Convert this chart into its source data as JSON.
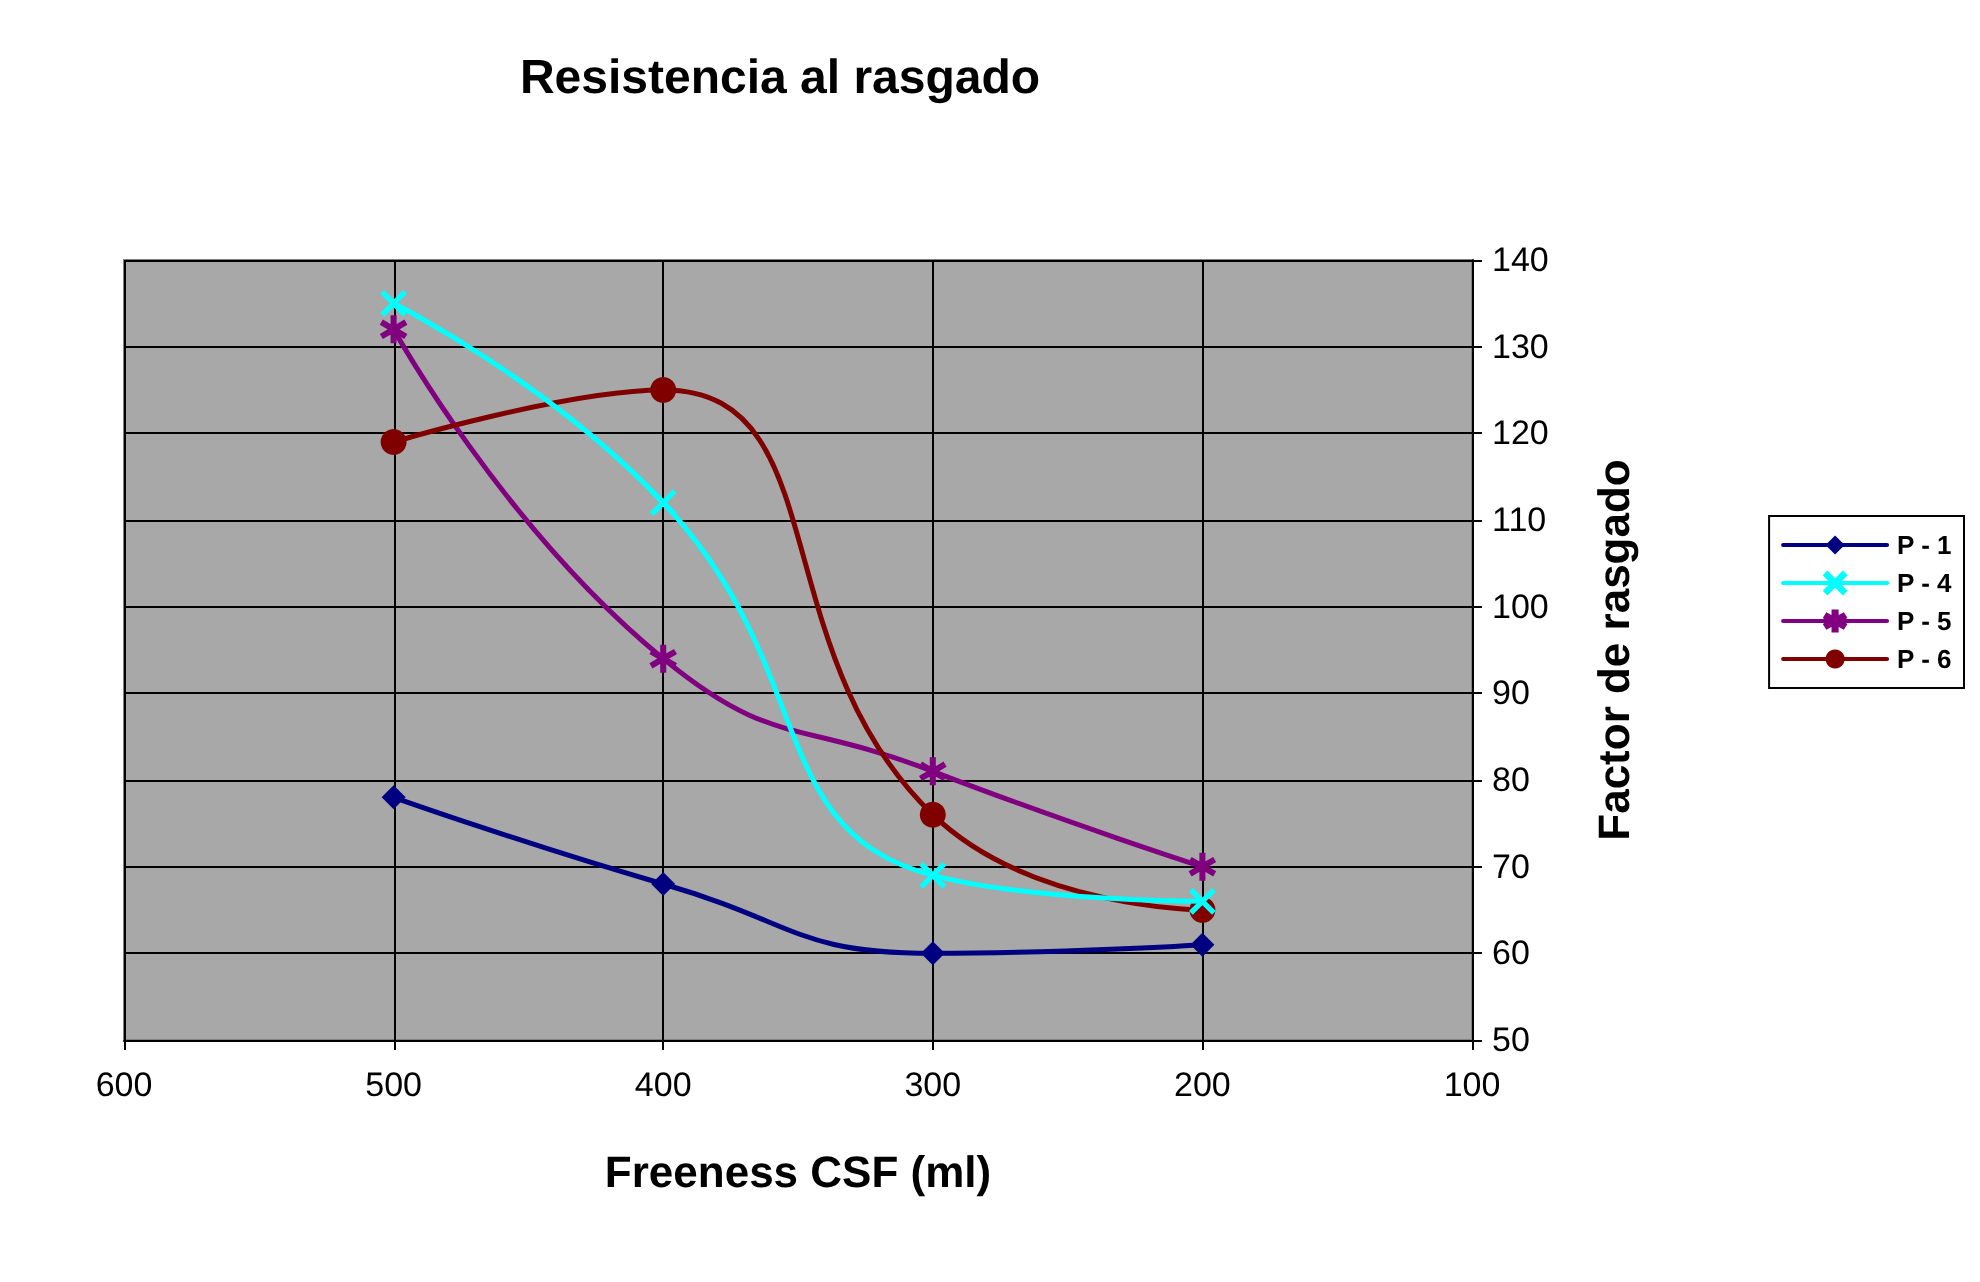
{
  "chart_data": {
    "type": "line",
    "title": "Resistencia al rasgado",
    "xlabel": "Freeness CSF (ml)",
    "ylabel": "Factor de rasgado",
    "x": [
      500,
      400,
      300,
      200
    ],
    "xlim": [
      600,
      100
    ],
    "xticks": [
      600,
      500,
      400,
      300,
      200,
      100
    ],
    "ylim": [
      50,
      140
    ],
    "yticks": [
      50,
      60,
      70,
      80,
      90,
      100,
      110,
      120,
      130,
      140
    ],
    "grid": true,
    "legend": "right",
    "line_style": "solid",
    "series": [
      {
        "name": "P - 1",
        "color": "#000080",
        "marker": "diamond",
        "values": [
          78,
          68,
          60,
          61
        ]
      },
      {
        "name": "P - 4",
        "color": "#00ffff",
        "marker": "cross",
        "values": [
          135,
          112,
          69,
          66
        ]
      },
      {
        "name": "P - 5",
        "color": "#800080",
        "marker": "star",
        "values": [
          132,
          94,
          81,
          70
        ]
      },
      {
        "name": "P - 6",
        "color": "#800000",
        "marker": "circle",
        "values": [
          119,
          125,
          76,
          65
        ]
      }
    ]
  }
}
